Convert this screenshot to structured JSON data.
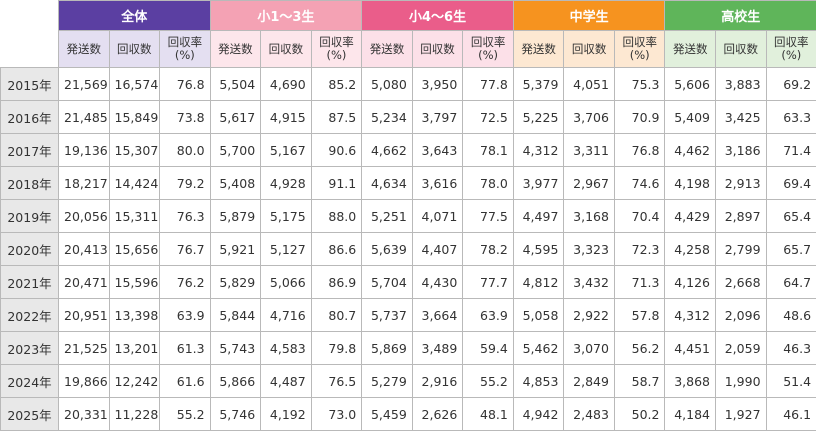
{
  "table": {
    "groups": [
      {
        "name": "全体",
        "columns": [
          "発送数",
          "回収数",
          "回収率\n(%)"
        ]
      },
      {
        "name": "小1～3生",
        "columns": [
          "発送数",
          "回収数",
          "回収率\n(%)"
        ]
      },
      {
        "name": "小4～6生",
        "columns": [
          "発送数",
          "回収数",
          "回収率\n(%)"
        ]
      },
      {
        "name": "中学生",
        "columns": [
          "発送数",
          "回収数",
          "回収率\n(%)"
        ]
      },
      {
        "name": "高校生",
        "columns": [
          "発送数",
          "回収数",
          "回収率\n(%)"
        ]
      }
    ],
    "rows": [
      {
        "year": "2015年",
        "cells": [
          "21,569",
          "16,574",
          "76.8",
          "5,504",
          "4,690",
          "85.2",
          "5,080",
          "3,950",
          "77.8",
          "5,379",
          "4,051",
          "75.3",
          "5,606",
          "3,883",
          "69.2"
        ]
      },
      {
        "year": "2016年",
        "cells": [
          "21,485",
          "15,849",
          "73.8",
          "5,617",
          "4,915",
          "87.5",
          "5,234",
          "3,797",
          "72.5",
          "5,225",
          "3,706",
          "70.9",
          "5,409",
          "3,425",
          "63.3"
        ]
      },
      {
        "year": "2017年",
        "cells": [
          "19,136",
          "15,307",
          "80.0",
          "5,700",
          "5,167",
          "90.6",
          "4,662",
          "3,643",
          "78.1",
          "4,312",
          "3,311",
          "76.8",
          "4,462",
          "3,186",
          "71.4"
        ]
      },
      {
        "year": "2018年",
        "cells": [
          "18,217",
          "14,424",
          "79.2",
          "5,408",
          "4,928",
          "91.1",
          "4,634",
          "3,616",
          "78.0",
          "3,977",
          "2,967",
          "74.6",
          "4,198",
          "2,913",
          "69.4"
        ]
      },
      {
        "year": "2019年",
        "cells": [
          "20,056",
          "15,311",
          "76.3",
          "5,879",
          "5,175",
          "88.0",
          "5,251",
          "4,071",
          "77.5",
          "4,497",
          "3,168",
          "70.4",
          "4,429",
          "2,897",
          "65.4"
        ]
      },
      {
        "year": "2020年",
        "cells": [
          "20,413",
          "15,656",
          "76.7",
          "5,921",
          "5,127",
          "86.6",
          "5,639",
          "4,407",
          "78.2",
          "4,595",
          "3,323",
          "72.3",
          "4,258",
          "2,799",
          "65.7"
        ]
      },
      {
        "year": "2021年",
        "cells": [
          "20,471",
          "15,596",
          "76.2",
          "5,829",
          "5,066",
          "86.9",
          "5,704",
          "4,430",
          "77.7",
          "4,812",
          "3,432",
          "71.3",
          "4,126",
          "2,668",
          "64.7"
        ]
      },
      {
        "year": "2022年",
        "cells": [
          "20,951",
          "13,398",
          "63.9",
          "5,844",
          "4,716",
          "80.7",
          "5,737",
          "3,664",
          "63.9",
          "5,058",
          "2,922",
          "57.8",
          "4,312",
          "2,096",
          "48.6"
        ]
      },
      {
        "year": "2023年",
        "cells": [
          "21,525",
          "13,201",
          "61.3",
          "5,743",
          "4,583",
          "79.8",
          "5,869",
          "3,489",
          "59.4",
          "5,462",
          "3,070",
          "56.2",
          "4,451",
          "2,059",
          "46.3"
        ]
      },
      {
        "year": "2024年",
        "cells": [
          "19,866",
          "12,242",
          "61.6",
          "5,866",
          "4,487",
          "76.5",
          "5,279",
          "2,916",
          "55.2",
          "4,853",
          "2,849",
          "58.7",
          "3,868",
          "1,990",
          "51.4"
        ]
      },
      {
        "year": "2025年",
        "cells": [
          "20,331",
          "11,228",
          "55.2",
          "5,746",
          "4,192",
          "73.0",
          "5,459",
          "2,626",
          "48.1",
          "4,942",
          "2,483",
          "50.2",
          "4,184",
          "1,927",
          "46.1"
        ]
      }
    ]
  }
}
